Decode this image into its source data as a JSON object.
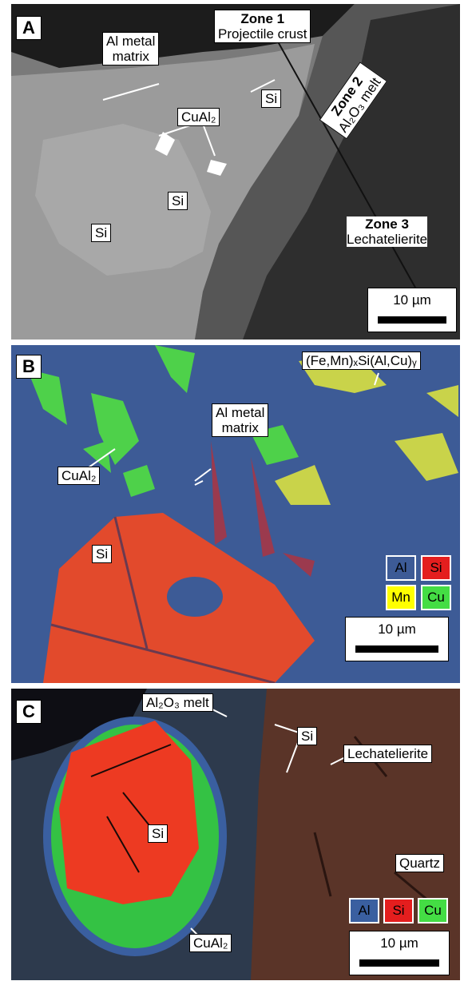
{
  "panels": [
    {
      "letter": "A",
      "scale_bar": "10 µm",
      "labels": [
        {
          "title": "Zone 1",
          "text": "Projectile crust"
        },
        {
          "lines": [
            "Al metal",
            "matrix"
          ]
        },
        {
          "text": "Si"
        },
        {
          "text": "CuAl₂"
        },
        {
          "title": "Zone 2",
          "text": "Al₂O₃ melt"
        },
        {
          "text": "Si"
        },
        {
          "text": "Si"
        },
        {
          "title": "Zone 3",
          "text": "Lechatelierite"
        }
      ]
    },
    {
      "letter": "B",
      "scale_bar": "10 µm",
      "legend": [
        "Al",
        "Si",
        "Mn",
        "Cu"
      ],
      "labels": [
        {
          "text": "(Fe,Mn)ₓSi(Al,Cu)ᵧ"
        },
        {
          "lines": [
            "Al metal",
            "matrix"
          ]
        },
        {
          "text": "CuAl₂"
        },
        {
          "text": "Si"
        }
      ]
    },
    {
      "letter": "C",
      "scale_bar": "10 µm",
      "legend": [
        "Al",
        "Si",
        "Cu"
      ],
      "labels": [
        {
          "text": "Al₂O₃ melt"
        },
        {
          "text": "Si"
        },
        {
          "text": "Lechatelierite"
        },
        {
          "text": "Si"
        },
        {
          "text": "Quartz"
        },
        {
          "text": "CuAl₂"
        }
      ]
    }
  ]
}
